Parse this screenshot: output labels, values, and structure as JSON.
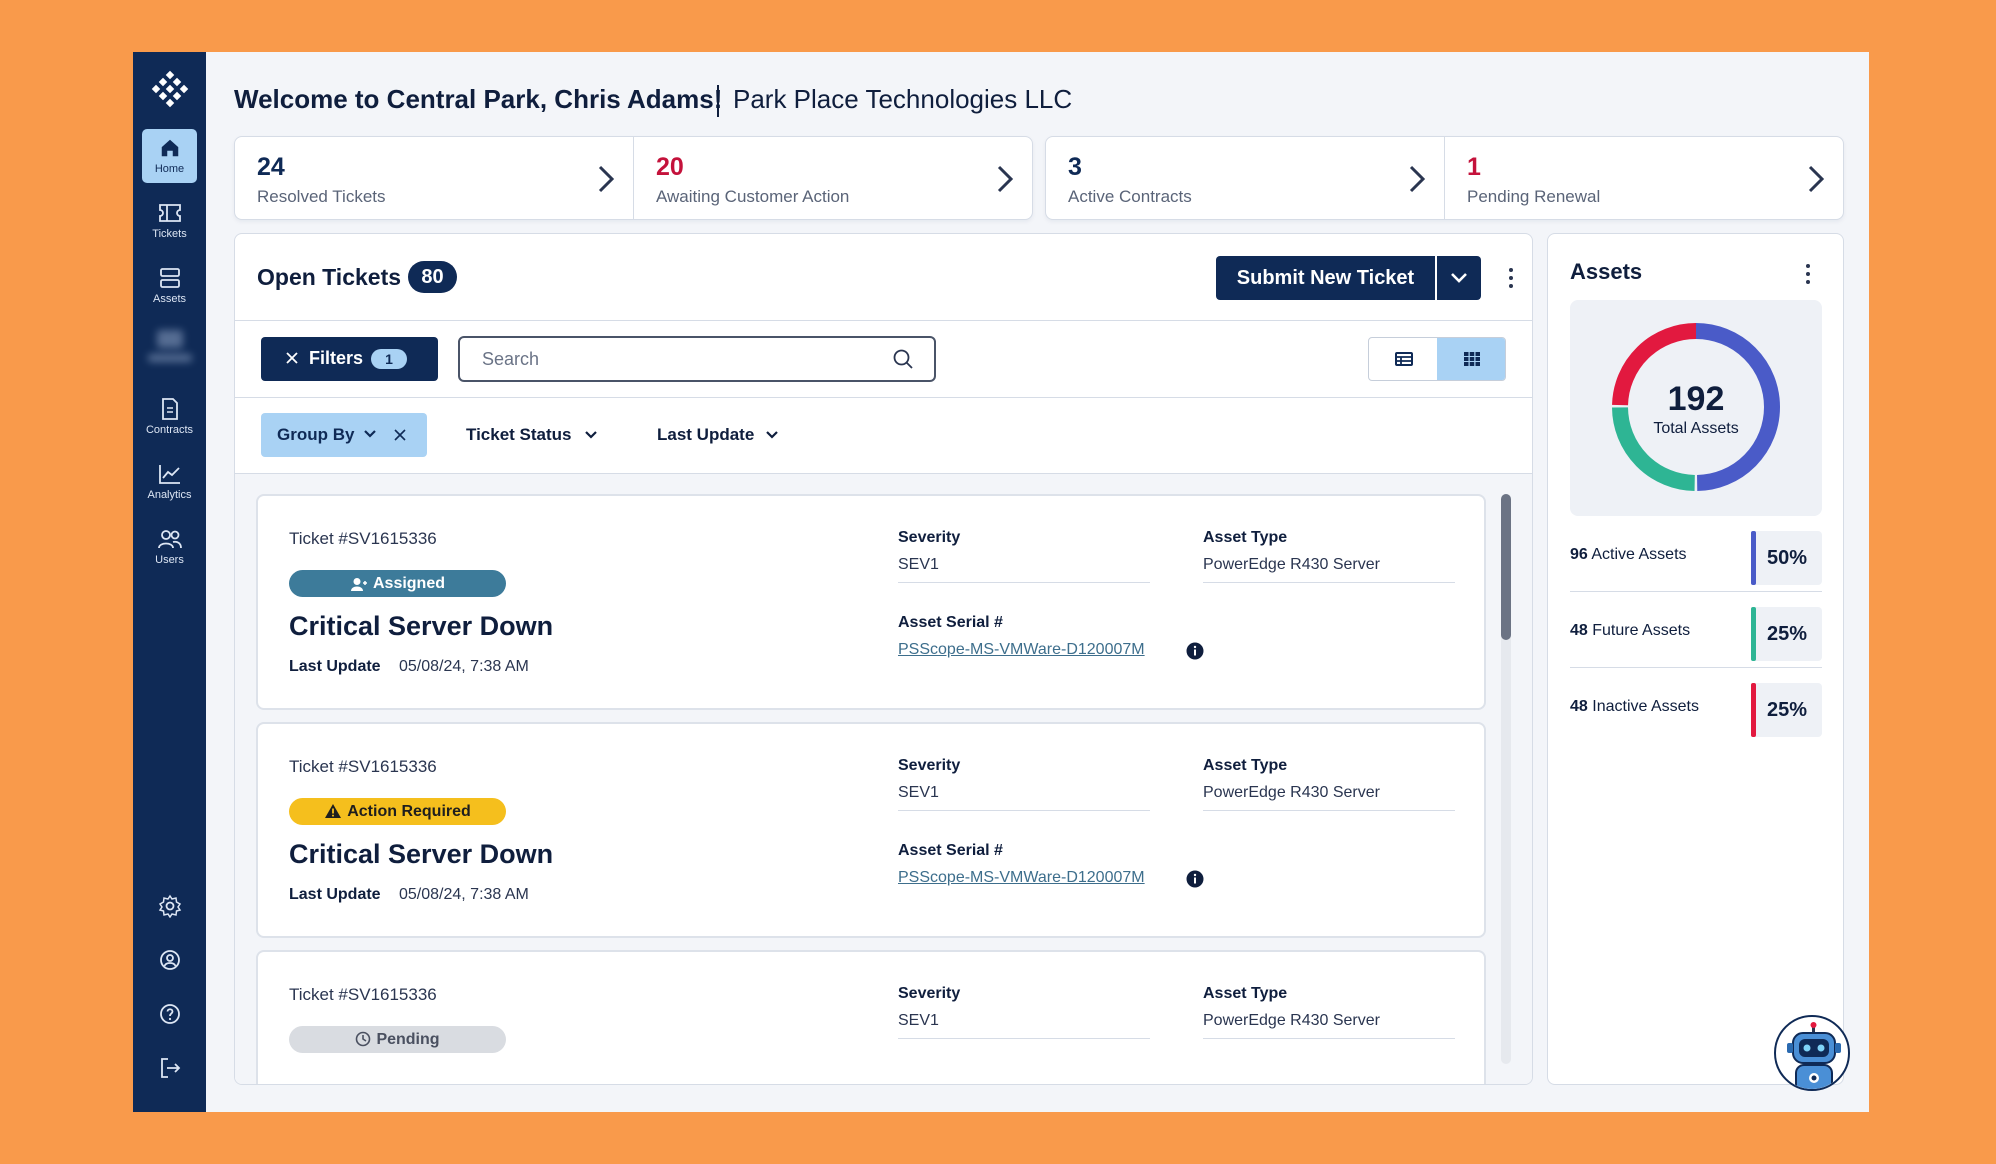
{
  "header": {
    "welcome": "Welcome to Central Park, Chris Adams!",
    "company": "Park Place Technologies LLC"
  },
  "sidebar": {
    "items": [
      {
        "label": "Home",
        "icon": "home-icon",
        "active": true
      },
      {
        "label": "Tickets",
        "icon": "ticket-icon"
      },
      {
        "label": "Assets",
        "icon": "server-icon"
      },
      {
        "label": "Contracts",
        "icon": "document-icon"
      },
      {
        "label": "Analytics",
        "icon": "chart-icon"
      },
      {
        "label": "Users",
        "icon": "users-icon"
      }
    ],
    "bottom_icons": [
      "gear-icon",
      "account-icon",
      "help-icon",
      "logout-icon"
    ]
  },
  "stats": [
    {
      "value": "24",
      "label": "Resolved Tickets"
    },
    {
      "value": "20",
      "label": "Awaiting Customer Action",
      "color": "#C4123B"
    },
    {
      "value": "3",
      "label": "Active Contracts"
    },
    {
      "value": "1",
      "label": "Pending Renewal",
      "color": "#C4123B"
    }
  ],
  "tickets": {
    "title": "Open Tickets",
    "count": "80",
    "submit_label": "Submit New Ticket",
    "filters_label": "Filters",
    "filters_count": "1",
    "search_placeholder": "Search",
    "group_by_label": "Group By",
    "dropdowns": [
      "Ticket Status",
      "Last Update"
    ],
    "items": [
      {
        "number": "Ticket #SV1615336",
        "status": "Assigned",
        "title": "Critical Server Down",
        "last_update_label": "Last Update",
        "last_update": "05/08/24, 7:38 AM",
        "severity_label": "Severity",
        "severity": "SEV1",
        "asset_type_label": "Asset Type",
        "asset_type": "PowerEdge R430 Server",
        "serial_label": "Asset Serial #",
        "serial": "PSScope-MS-VMWare-D120007M"
      },
      {
        "number": "Ticket #SV1615336",
        "status": "Action Required",
        "title": "Critical Server Down",
        "last_update_label": "Last Update",
        "last_update": "05/08/24, 7:38 AM",
        "severity_label": "Severity",
        "severity": "SEV1",
        "asset_type_label": "Asset Type",
        "asset_type": "PowerEdge R430 Server",
        "serial_label": "Asset Serial #",
        "serial": "PSScope-MS-VMWare-D120007M"
      },
      {
        "number": "Ticket #SV1615336",
        "status": "Pending",
        "severity_label": "Severity",
        "severity": "SEV1",
        "asset_type_label": "Asset Type",
        "asset_type": "PowerEdge R430 Server"
      }
    ]
  },
  "assets": {
    "title": "Assets",
    "total": "192",
    "total_label": "Total Assets",
    "rows": [
      {
        "count": "96",
        "label": "Active Assets",
        "pct": "50%",
        "color": "#2EB594"
      },
      {
        "count": "48",
        "label": "Future Assets",
        "pct": "25%",
        "color": "#4A5BC8"
      },
      {
        "count": "48",
        "label": "Inactive Assets",
        "pct": "25%",
        "color": "#E2193F"
      }
    ]
  },
  "colors": {
    "navy": "#0F2A56",
    "accent_light": "#A9D2F4",
    "alert_red": "#C4123B",
    "warning_yellow": "#F5BF1D",
    "assigned_teal": "#3D7B9A",
    "background": "#F99A4B"
  }
}
